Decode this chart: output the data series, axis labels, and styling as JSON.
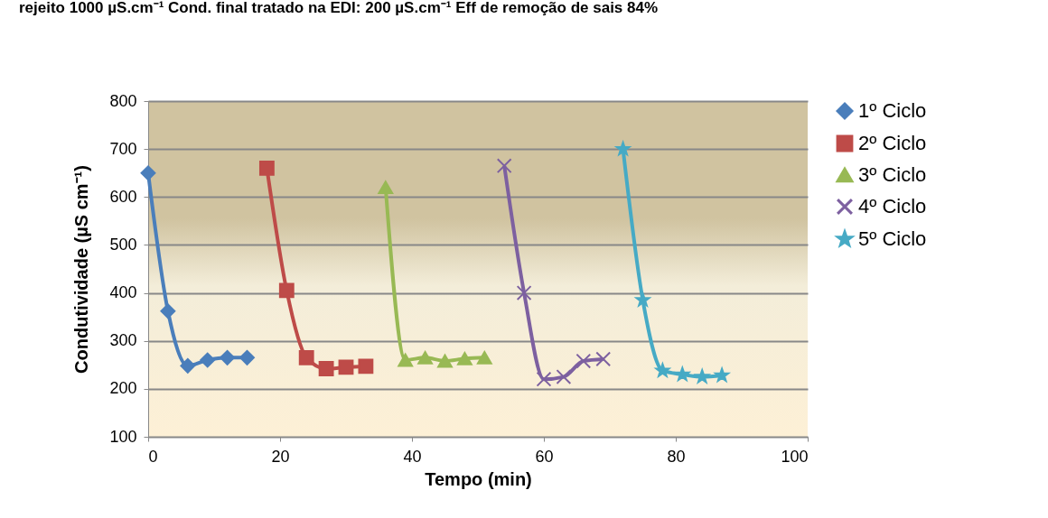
{
  "chart_data": {
    "type": "line",
    "title": "rejeito 1000 µS.cm⁻¹ Cond. final tratado na EDI: 200 µS.cm⁻¹ Eff de remoção de sais 84%",
    "xlabel": "Tempo (min)",
    "ylabel": "Condutividade (µS cm⁻¹)",
    "xlim": [
      0,
      100
    ],
    "xticks": [
      0,
      20,
      40,
      60,
      80,
      100
    ],
    "ylim": [
      100,
      800
    ],
    "yticks": [
      100,
      200,
      300,
      400,
      500,
      600,
      700,
      800
    ],
    "grid": "y",
    "legend": "right",
    "series": [
      {
        "name": "1º Ciclo",
        "color": "#4a7ebb",
        "marker": "diamond",
        "x": [
          0,
          3,
          6,
          9,
          12,
          15
        ],
        "values": [
          650,
          362,
          248,
          260,
          265,
          265
        ]
      },
      {
        "name": "2º Ciclo",
        "color": "#be4b48",
        "marker": "square",
        "x": [
          18,
          21,
          24,
          27,
          30,
          33
        ],
        "values": [
          660,
          405,
          265,
          242,
          245,
          247
        ]
      },
      {
        "name": "3º Ciclo",
        "color": "#98b954",
        "marker": "triangle",
        "x": [
          36,
          39,
          42,
          45,
          48,
          51
        ],
        "values": [
          620,
          260,
          265,
          258,
          263,
          265
        ]
      },
      {
        "name": "4º Ciclo",
        "color": "#7d60a0",
        "marker": "cross",
        "x": [
          54,
          57,
          60,
          63,
          66,
          69
        ],
        "values": [
          665,
          400,
          220,
          225,
          258,
          262
        ]
      },
      {
        "name": "5º Ciclo",
        "color": "#46aac5",
        "marker": "star",
        "x": [
          72,
          75,
          78,
          81,
          84,
          87
        ],
        "values": [
          700,
          385,
          238,
          230,
          225,
          228
        ]
      }
    ]
  }
}
